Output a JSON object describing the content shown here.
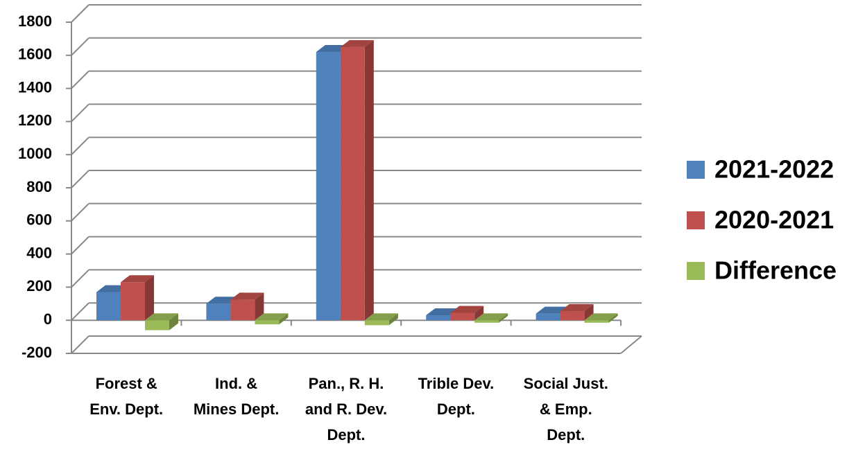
{
  "chart_data": {
    "type": "bar3d",
    "categories": [
      "Forest & Env. Dept.",
      "Ind. & Mines Dept.",
      "Pan., R. H. and R. Dev. Dept.",
      "Trible Dev. Dept.",
      "Social Just. & Emp. Dept."
    ],
    "series": [
      {
        "name": "2021-2022",
        "color": "#4f81bd",
        "values": [
          170,
          100,
          1620,
          30,
          40
        ]
      },
      {
        "name": "2020-2021",
        "color": "#c0504d",
        "values": [
          230,
          125,
          1650,
          45,
          55
        ]
      },
      {
        "name": "Difference",
        "color": "#9bbb59",
        "values": [
          -60,
          -25,
          -30,
          -15,
          -15
        ]
      }
    ],
    "ylim": [
      -200,
      1800
    ],
    "yticks": [
      -200,
      0,
      200,
      400,
      600,
      800,
      1000,
      1200,
      1400,
      1600,
      1800
    ],
    "grid": true,
    "legend": "right"
  }
}
